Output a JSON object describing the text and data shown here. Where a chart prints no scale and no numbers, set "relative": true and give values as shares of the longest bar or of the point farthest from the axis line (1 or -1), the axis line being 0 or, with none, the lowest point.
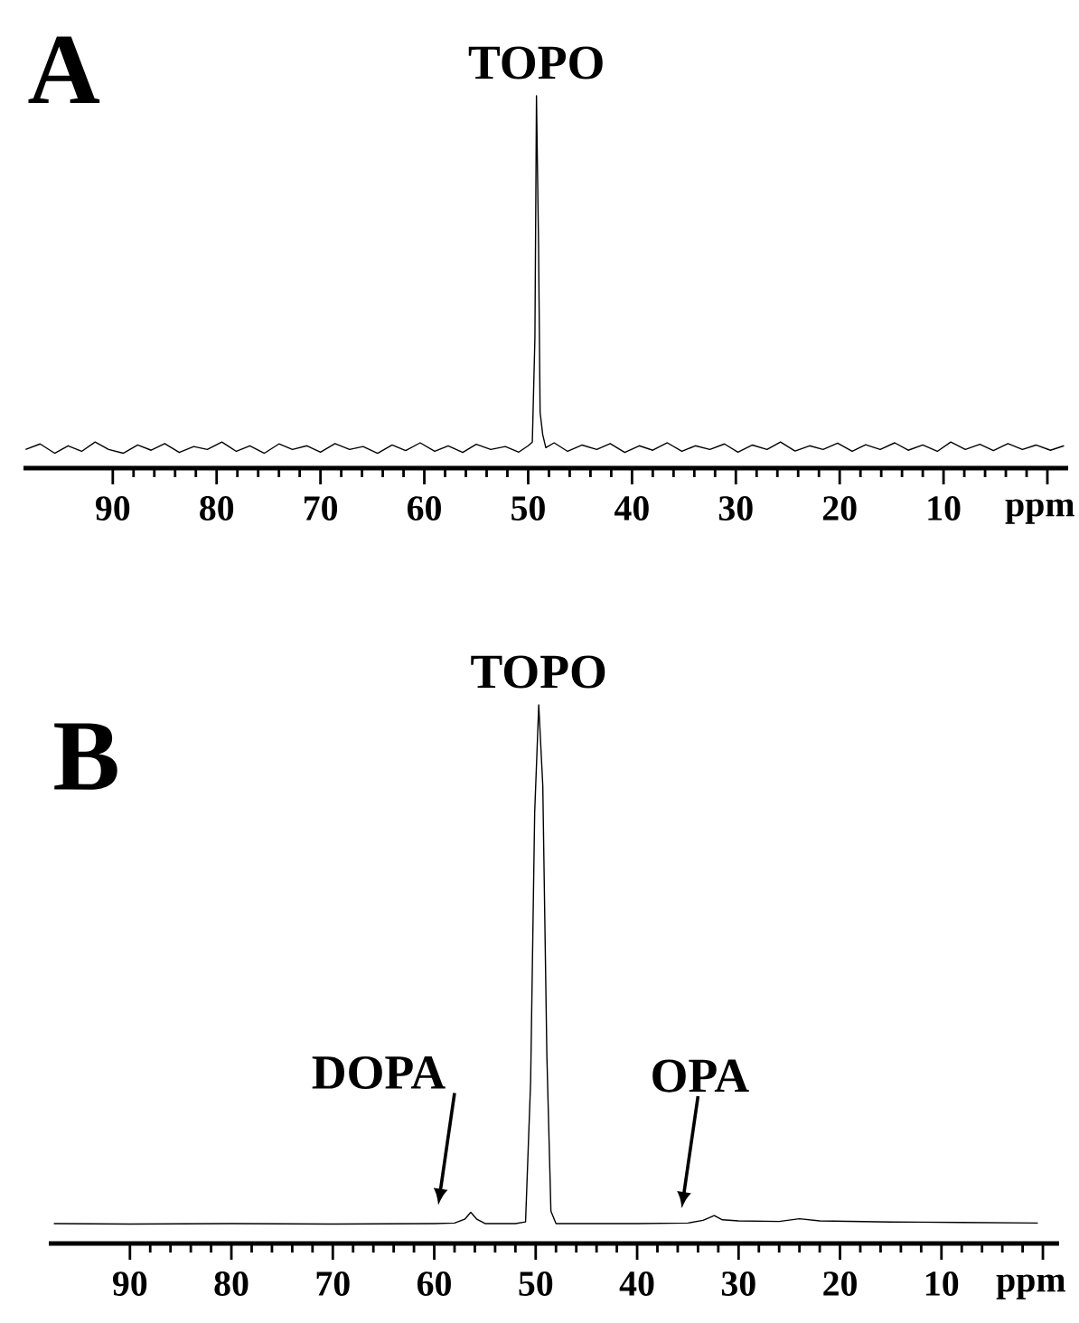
{
  "chart_data": [
    {
      "type": "line",
      "title": "A",
      "xlabel": "ppm",
      "relative": true,
      "xlim": [
        98.6,
        -2
      ],
      "xticks": [
        90,
        80,
        70,
        60,
        50,
        40,
        30,
        20,
        10,
        {
          "value": 0,
          "label": null
        }
      ],
      "series": [
        {
          "color": "#000000",
          "x": [
            98.4,
            97,
            95.6,
            94.3,
            93,
            91.7,
            90.4,
            89,
            87.6,
            86.3,
            85,
            83.6,
            82.2,
            80.9,
            79.5,
            78.1,
            76.8,
            75.4,
            74,
            72.7,
            71.3,
            70,
            68.6,
            67.2,
            65.9,
            64.5,
            63.1,
            61.8,
            60.4,
            59,
            57.7,
            56.3,
            55,
            53.6,
            52.2,
            50.9,
            50,
            49.6,
            49.35,
            49.2,
            49.0,
            48.85,
            48.6,
            48.3,
            47.5,
            46.2,
            44.8,
            43.4,
            42.1,
            40.7,
            39.3,
            38,
            36.6,
            35.2,
            33.9,
            32.5,
            31.1,
            29.8,
            28.4,
            27,
            25.7,
            24.3,
            22.9,
            21.6,
            20.2,
            18.8,
            17.5,
            16.1,
            14.7,
            13.4,
            12,
            10.6,
            9.3,
            7.9,
            6.5,
            5.2,
            3.8,
            2.4,
            1.1,
            -0.3,
            -1.6
          ],
          "values": [
            0.05,
            0.065,
            0.04,
            0.06,
            0.045,
            0.07,
            0.05,
            0.04,
            0.062,
            0.048,
            0.066,
            0.042,
            0.058,
            0.05,
            0.07,
            0.045,
            0.06,
            0.04,
            0.065,
            0.05,
            0.06,
            0.043,
            0.066,
            0.05,
            0.058,
            0.04,
            0.062,
            0.047,
            0.068,
            0.045,
            0.06,
            0.042,
            0.064,
            0.05,
            0.058,
            0.043,
            0.06,
            0.07,
            0.35,
            1.0,
            0.6,
            0.15,
            0.09,
            0.055,
            0.068,
            0.045,
            0.062,
            0.05,
            0.066,
            0.042,
            0.06,
            0.048,
            0.068,
            0.045,
            0.06,
            0.05,
            0.065,
            0.043,
            0.062,
            0.05,
            0.07,
            0.046,
            0.06,
            0.05,
            0.067,
            0.045,
            0.063,
            0.05,
            0.068,
            0.048,
            0.062,
            0.045,
            0.07,
            0.05,
            0.064,
            0.047,
            0.066,
            0.05,
            0.062,
            0.048,
            0.06
          ]
        }
      ],
      "annotations": [
        {
          "text": "TOPO",
          "x": 49.2,
          "y": 1.0
        }
      ]
    },
    {
      "type": "line",
      "title": "B",
      "xlabel": "ppm",
      "relative": true,
      "xlim": [
        98,
        -1.6
      ],
      "xticks": [
        90,
        80,
        70,
        60,
        50,
        40,
        30,
        20,
        10,
        {
          "value": 0,
          "label": null
        }
      ],
      "series": [
        {
          "color": "#000000",
          "x": [
            97.5,
            90,
            80,
            70,
            60,
            58,
            57,
            56.4,
            55.8,
            55,
            52,
            51,
            50.5,
            50.1,
            49.7,
            49.3,
            48.9,
            48.5,
            48,
            40,
            35,
            33.5,
            32.4,
            31.6,
            30,
            26,
            24,
            22,
            15,
            8,
            0.5
          ],
          "values": [
            0.037,
            0.036,
            0.037,
            0.036,
            0.037,
            0.038,
            0.045,
            0.058,
            0.045,
            0.037,
            0.037,
            0.04,
            0.3,
            0.8,
            1.0,
            0.85,
            0.35,
            0.06,
            0.037,
            0.037,
            0.038,
            0.043,
            0.052,
            0.044,
            0.042,
            0.041,
            0.046,
            0.042,
            0.04,
            0.039,
            0.038
          ]
        }
      ],
      "annotations": [
        {
          "text": "TOPO",
          "x": 49.7,
          "y": 1.0
        },
        {
          "text": "DOPA",
          "x": 56.4,
          "y": 0.058
        },
        {
          "text": "OPA",
          "x": 32.4,
          "y": 0.052
        }
      ]
    }
  ]
}
